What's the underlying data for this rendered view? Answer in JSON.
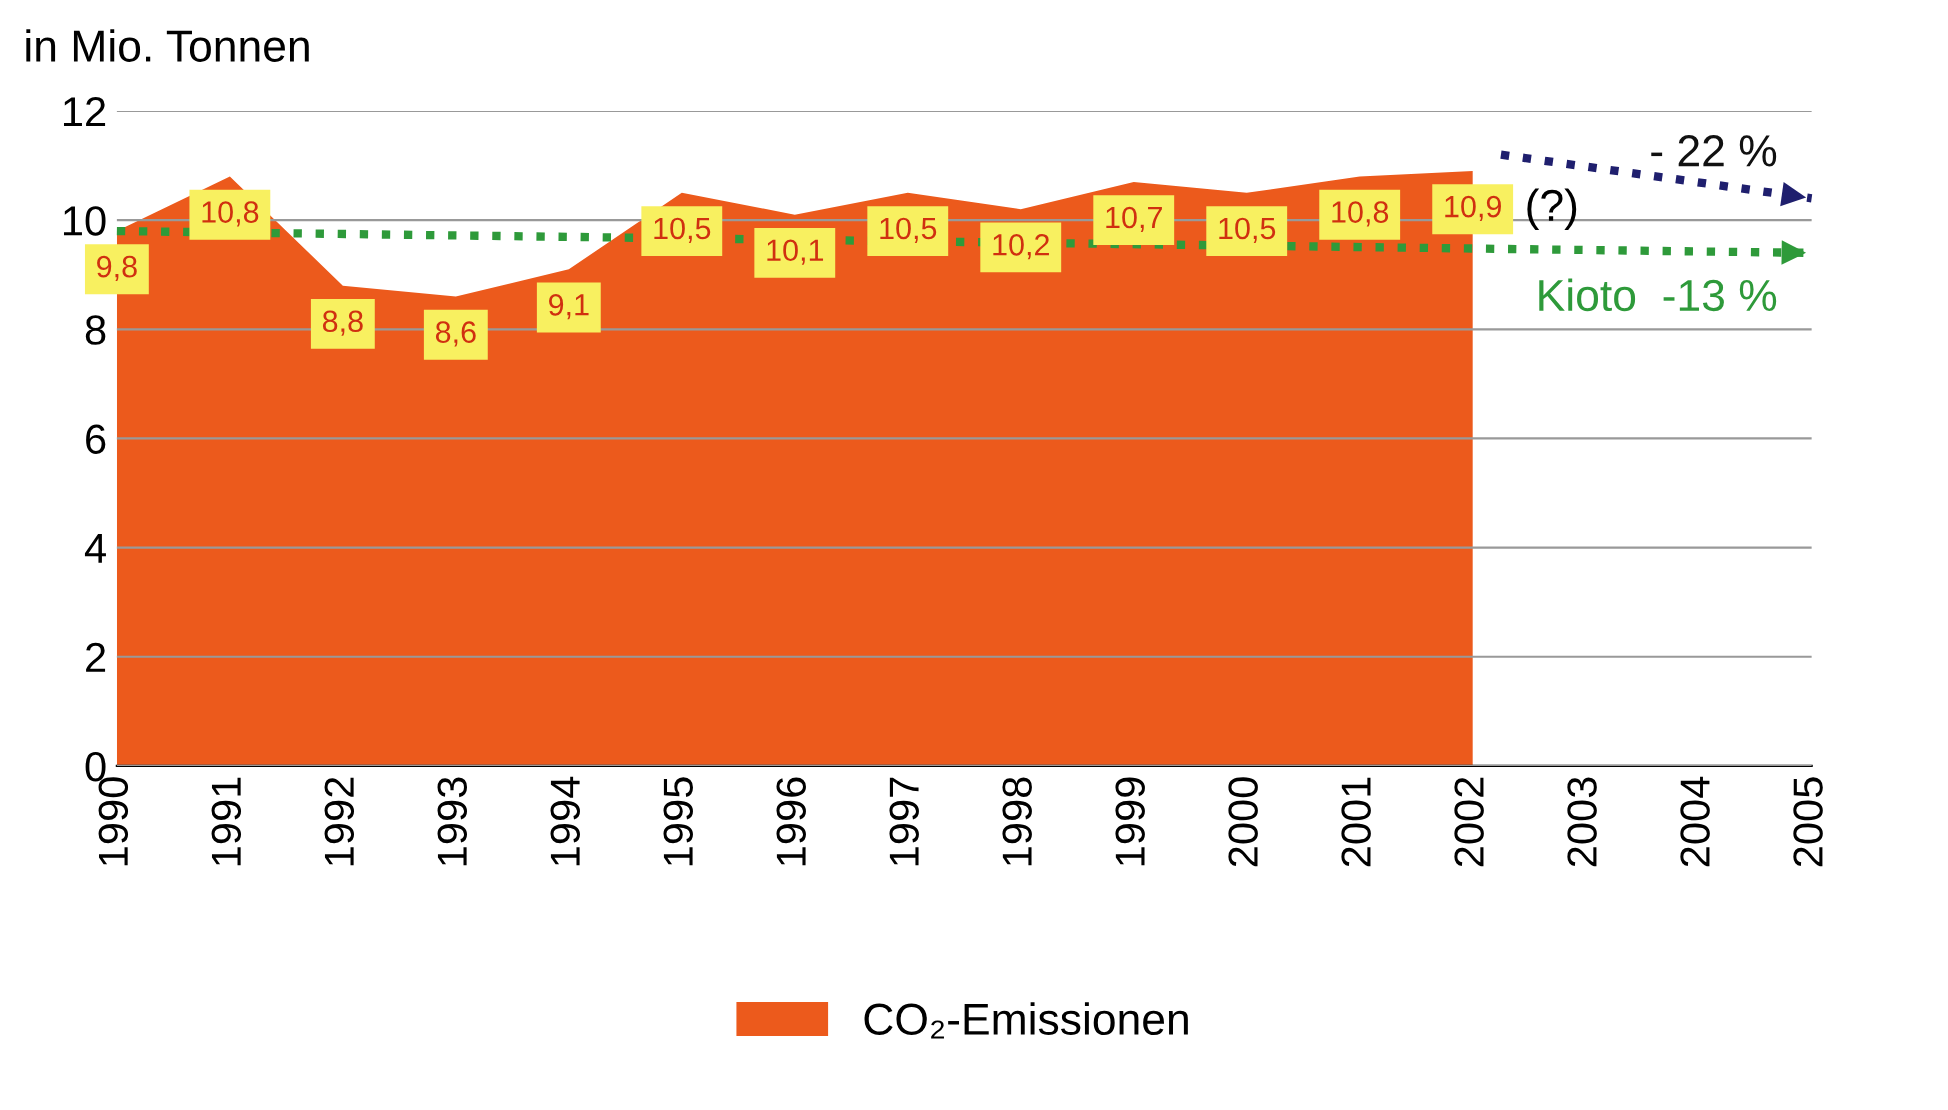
{
  "chart_data": {
    "type": "area",
    "ylabel": "in Mio. Tonnen",
    "x": [
      1990,
      1991,
      1992,
      1993,
      1994,
      1995,
      1996,
      1997,
      1998,
      1999,
      2000,
      2001,
      2002
    ],
    "series": [
      {
        "name": "CO₂-Emissionen",
        "color": "#ec5a1c",
        "values": [
          9.8,
          10.8,
          8.8,
          8.6,
          9.1,
          10.5,
          10.1,
          10.5,
          10.2,
          10.7,
          10.5,
          10.8,
          10.9
        ],
        "value_labels": [
          "9,8",
          "10,8",
          "8,8",
          "8,6",
          "9,1",
          "10,5",
          "10,1",
          "10,5",
          "10,2",
          "10,7",
          "10,5",
          "10,8",
          "10,9"
        ]
      },
      {
        "type": "line",
        "color": "#1f1f6e",
        "x": [
          2002.25,
          2005
        ],
        "values": [
          11.2,
          10.4
        ],
        "line_style": "dotted"
      },
      {
        "type": "line",
        "color": "#2e9a3a",
        "x": [
          1990,
          2005
        ],
        "values": [
          9.8,
          9.4
        ],
        "line_style": "dotted"
      }
    ],
    "annotations": [
      {
        "text": "- 22 %",
        "x": 2005,
        "y": 10.4
      },
      {
        "text": "Kioto  -13 %",
        "x": 2005,
        "y": 9.4
      },
      "(?)"
    ],
    "xlim": [
      1990,
      2005
    ],
    "xticks": [
      1990,
      1991,
      1992,
      1993,
      1994,
      1995,
      1996,
      1997,
      1998,
      1999,
      2000,
      2001,
      2002,
      2003,
      2004,
      2005
    ],
    "ylim": [
      0,
      12
    ],
    "yticks": [
      0,
      2,
      4,
      6,
      8,
      10,
      12
    ],
    "grid": "y",
    "legend": "bottom"
  }
}
